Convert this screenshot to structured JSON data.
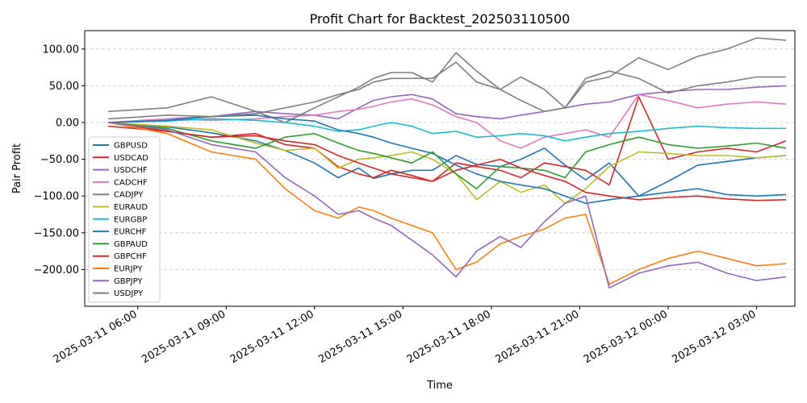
{
  "chart_data": {
    "type": "line",
    "title": "Profit Chart for Backtest_202503110500",
    "xlabel": "Time",
    "ylabel": "Pair Profit",
    "x_range_hours": [
      -0.8,
      23.3
    ],
    "ylim": [
      -250,
      125
    ],
    "yticks": [
      -200,
      -150,
      -100,
      -50,
      0,
      50,
      100
    ],
    "ytick_labels": [
      "−200.00",
      "−150.00",
      "−100.00",
      "−50.00",
      "0.00",
      "50.00",
      "100.00"
    ],
    "xticks_hours": [
      1,
      4,
      7,
      10,
      13,
      16,
      19,
      22
    ],
    "xtick_labels": [
      "2025-03-11 06:00",
      "2025-03-11 09:00",
      "2025-03-11 12:00",
      "2025-03-11 15:00",
      "2025-03-11 18:00",
      "2025-03-11 21:00",
      "2025-03-12 00:00",
      "2025-03-12 03:00"
    ],
    "grid": "y-dashed",
    "legend_location": "lower-left",
    "x_hours": [
      0.0,
      2.0,
      3.5,
      5.0,
      6.0,
      7.0,
      7.8,
      8.5,
      9.0,
      9.6,
      10.3,
      11.0,
      11.8,
      12.5,
      13.3,
      14.0,
      14.8,
      15.5,
      16.2,
      17.0,
      18.0,
      19.0,
      20.0,
      21.0,
      22.0,
      23.0
    ],
    "series": [
      {
        "name": "GBPUSD",
        "color": "#1f77b4",
        "values": [
          0,
          -6,
          -14,
          -25,
          -38,
          -55,
          -75,
          -62,
          -76,
          -70,
          -65,
          -65,
          -45,
          -57,
          -60,
          -50,
          -35,
          -58,
          -78,
          -55,
          -100,
          -80,
          -58,
          -53,
          -48,
          -45
        ]
      },
      {
        "name": "USDCAD",
        "color": "#d62728",
        "values": [
          -5,
          -12,
          -20,
          -15,
          -30,
          -35,
          -60,
          -70,
          -75,
          -65,
          -72,
          -80,
          -55,
          -60,
          -65,
          -75,
          -55,
          -60,
          -65,
          -85,
          35,
          -50,
          -40,
          -35,
          -40,
          -25
        ]
      },
      {
        "name": "USDCHF",
        "color": "#9467bd",
        "values": [
          0,
          5,
          8,
          15,
          12,
          10,
          5,
          20,
          30,
          35,
          38,
          32,
          12,
          8,
          5,
          10,
          15,
          20,
          25,
          28,
          38,
          42,
          45,
          45,
          48,
          50
        ]
      },
      {
        "name": "CADCHF",
        "color": "#e377c2",
        "values": [
          0,
          5,
          3,
          5,
          8,
          10,
          15,
          18,
          22,
          28,
          32,
          24,
          8,
          0,
          -25,
          -35,
          -20,
          -15,
          -10,
          -20,
          38,
          30,
          20,
          25,
          28,
          25
        ]
      },
      {
        "name": "CADJPY",
        "color": "#7f7f7f",
        "values": [
          15,
          20,
          35,
          15,
          0,
          20,
          35,
          48,
          60,
          68,
          68,
          55,
          95,
          70,
          45,
          62,
          45,
          20,
          55,
          62,
          88,
          72,
          90,
          100,
          115,
          112
        ]
      },
      {
        "name": "EURAUD",
        "color": "#bcbd22",
        "values": [
          0,
          -5,
          -10,
          -28,
          -38,
          -35,
          -62,
          -50,
          -48,
          -45,
          -40,
          -50,
          -70,
          -105,
          -80,
          -95,
          -85,
          -110,
          -90,
          -60,
          -40,
          -42,
          -45,
          -45,
          -48,
          -45
        ]
      },
      {
        "name": "EURGBP",
        "color": "#17becf",
        "values": [
          0,
          2,
          5,
          3,
          0,
          -5,
          -12,
          -10,
          -5,
          0,
          -5,
          -15,
          -12,
          -20,
          -18,
          -15,
          -18,
          -25,
          -20,
          -15,
          -12,
          -8,
          -5,
          -7,
          -8,
          -8
        ]
      },
      {
        "name": "EURCHF",
        "color": "#1f77b4",
        "values": [
          0,
          3,
          8,
          10,
          5,
          2,
          -10,
          -15,
          -20,
          -28,
          -35,
          -42,
          -58,
          -70,
          -80,
          -85,
          -90,
          -100,
          -110,
          -105,
          -100,
          -95,
          -90,
          -98,
          -100,
          -98
        ]
      },
      {
        "name": "GBPAUD",
        "color": "#2ca02c",
        "values": [
          0,
          -8,
          -25,
          -35,
          -20,
          -15,
          -28,
          -38,
          -42,
          -48,
          -55,
          -40,
          -70,
          -90,
          -60,
          -62,
          -65,
          -75,
          -40,
          -30,
          -20,
          -30,
          -35,
          -32,
          -28,
          -35
        ]
      },
      {
        "name": "GBPCHF",
        "color": "#d62728",
        "values": [
          0,
          -12,
          -20,
          -18,
          -25,
          -30,
          -45,
          -55,
          -62,
          -70,
          -75,
          -80,
          -65,
          -58,
          -50,
          -62,
          -72,
          -80,
          -95,
          -100,
          -105,
          -102,
          -100,
          -104,
          -106,
          -105
        ]
      },
      {
        "name": "EURJPY",
        "color": "#ff7f0e",
        "values": [
          0,
          -15,
          -40,
          -50,
          -90,
          -120,
          -130,
          -115,
          -120,
          -130,
          -140,
          -150,
          -200,
          -190,
          -165,
          -155,
          -145,
          -130,
          -125,
          -220,
          -200,
          -185,
          -175,
          -185,
          -195,
          -192
        ]
      },
      {
        "name": "GBPJPY",
        "color": "#9467bd",
        "values": [
          0,
          -10,
          -30,
          -40,
          -75,
          -100,
          -125,
          -120,
          -130,
          -140,
          -160,
          -180,
          -210,
          -175,
          -155,
          -170,
          -135,
          -110,
          -100,
          -225,
          -205,
          -195,
          -190,
          -205,
          -215,
          -210
        ]
      },
      {
        "name": "USDJPY",
        "color": "#7f7f7f",
        "values": [
          5,
          10,
          8,
          12,
          20,
          28,
          38,
          45,
          55,
          60,
          60,
          60,
          82,
          55,
          45,
          30,
          15,
          20,
          60,
          70,
          60,
          40,
          50,
          55,
          62,
          62
        ]
      }
    ]
  }
}
